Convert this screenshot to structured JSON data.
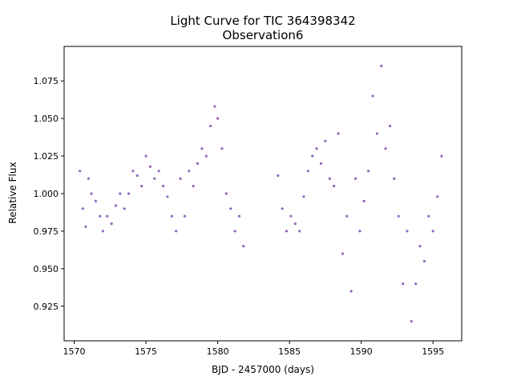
{
  "chart_data": {
    "type": "scatter",
    "title": "Light Curve for TIC 364398342",
    "subtitle": "Observation6",
    "xlabel": "BJD - 2457000 (days)",
    "ylabel": "Relative Flux",
    "xlim": [
      1569.3,
      1597.0
    ],
    "ylim": [
      0.902,
      1.098
    ],
    "xticks": [
      1570,
      1575,
      1580,
      1585,
      1590,
      1595
    ],
    "yticks": [
      0.925,
      0.95,
      0.975,
      1.0,
      1.025,
      1.05,
      1.075
    ],
    "xtick_labels": [
      "1570",
      "1575",
      "1580",
      "1585",
      "1590",
      "1595"
    ],
    "ytick_labels": [
      "0.925",
      "0.950",
      "0.975",
      "1.000",
      "1.025",
      "1.050",
      "1.075"
    ],
    "grid": false,
    "legend": "none",
    "color": "#9467bd",
    "series": [
      {
        "x": [
          1570.4,
          1570.6,
          1570.8,
          1571.0,
          1571.2,
          1571.5,
          1571.8,
          1572.0,
          1572.3,
          1572.6,
          1572.9,
          1573.2,
          1573.5,
          1573.8,
          1574.1,
          1574.4,
          1574.7,
          1575.0,
          1575.3,
          1575.6,
          1575.9,
          1576.2,
          1576.5,
          1576.8,
          1577.1,
          1577.4,
          1577.7,
          1578.0,
          1578.3,
          1578.6,
          1578.9,
          1579.2,
          1579.5,
          1579.8,
          1580.0,
          1580.3,
          1580.6,
          1580.9,
          1581.2,
          1581.5,
          1581.8
        ],
        "y": [
          1.015,
          0.99,
          0.978,
          1.01,
          1.0,
          0.995,
          0.985,
          0.975,
          0.985,
          0.98,
          0.992,
          1.0,
          0.99,
          1.0,
          1.015,
          1.012,
          1.005,
          1.025,
          1.018,
          1.01,
          1.015,
          1.005,
          0.998,
          0.985,
          0.975,
          1.01,
          0.985,
          1.015,
          1.005,
          1.02,
          1.03,
          1.025,
          1.045,
          1.058,
          1.05,
          1.03,
          1.0,
          0.99,
          0.975,
          0.985,
          0.965
        ]
      },
      {
        "x": [
          1584.2,
          1584.5,
          1584.8,
          1585.1,
          1585.4,
          1585.7,
          1586.0,
          1586.3,
          1586.6,
          1586.9,
          1587.2,
          1587.5,
          1587.8,
          1588.1,
          1588.4,
          1588.7,
          1589.0,
          1589.3,
          1589.6,
          1589.9,
          1590.2,
          1590.5,
          1590.8,
          1591.1,
          1591.4,
          1591.7,
          1592.0,
          1592.3,
          1592.6,
          1592.9,
          1593.2,
          1593.5,
          1593.8,
          1594.1,
          1594.4,
          1594.7,
          1595.0,
          1595.3,
          1595.6
        ],
        "y": [
          1.012,
          0.99,
          0.975,
          0.985,
          0.98,
          0.975,
          0.998,
          1.015,
          1.025,
          1.03,
          1.02,
          1.035,
          1.01,
          1.005,
          1.04,
          0.96,
          0.985,
          0.935,
          1.01,
          0.975,
          0.995,
          1.015,
          1.065,
          1.04,
          1.085,
          1.03,
          1.045,
          1.01,
          0.985,
          0.94,
          0.975,
          0.915,
          0.94,
          0.965,
          0.955,
          0.985,
          0.975,
          0.998,
          1.025
        ]
      }
    ]
  }
}
